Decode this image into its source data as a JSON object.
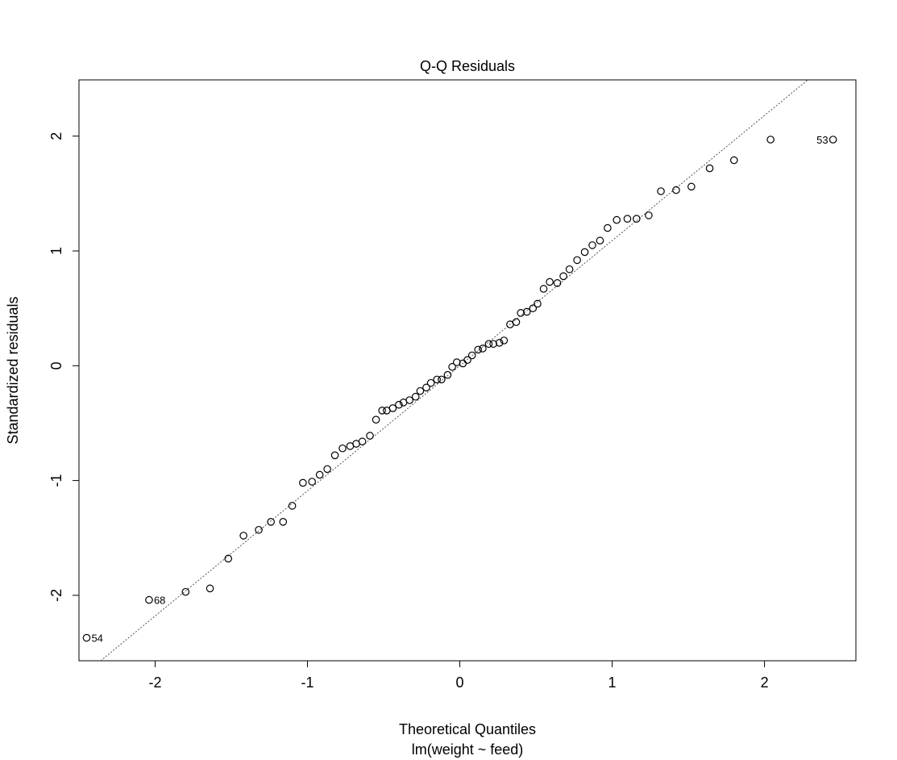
{
  "chart_data": {
    "type": "scatter",
    "title": "Q-Q Residuals",
    "xlabel": "Theoretical Quantiles",
    "xlabel_sub": "lm(weight ~ feed)",
    "ylabel": "Standardized residuals",
    "xlim": [
      -2.5,
      2.6
    ],
    "ylim": [
      -2.57,
      2.49
    ],
    "x_ticks": [
      -2,
      -1,
      0,
      1,
      2
    ],
    "x_tick_labels": [
      "-2",
      "-1",
      "0",
      "1",
      "2"
    ],
    "y_ticks": [
      -2,
      -1,
      0,
      1,
      2
    ],
    "y_tick_labels": [
      "-2",
      "-1",
      "0",
      "1",
      "2"
    ],
    "grid": false,
    "reference_line": {
      "style": "dotted",
      "slope": 1.09,
      "intercept": 0.0
    },
    "points": [
      {
        "x": -2.45,
        "y": -2.37
      },
      {
        "x": -2.04,
        "y": -2.04
      },
      {
        "x": -1.8,
        "y": -1.97
      },
      {
        "x": -1.64,
        "y": -1.94
      },
      {
        "x": -1.52,
        "y": -1.68
      },
      {
        "x": -1.42,
        "y": -1.48
      },
      {
        "x": -1.32,
        "y": -1.43
      },
      {
        "x": -1.24,
        "y": -1.36
      },
      {
        "x": -1.16,
        "y": -1.36
      },
      {
        "x": -1.1,
        "y": -1.22
      },
      {
        "x": -1.03,
        "y": -1.02
      },
      {
        "x": -0.97,
        "y": -1.01
      },
      {
        "x": -0.92,
        "y": -0.95
      },
      {
        "x": -0.87,
        "y": -0.9
      },
      {
        "x": -0.82,
        "y": -0.78
      },
      {
        "x": -0.77,
        "y": -0.72
      },
      {
        "x": -0.72,
        "y": -0.7
      },
      {
        "x": -0.68,
        "y": -0.68
      },
      {
        "x": -0.64,
        "y": -0.66
      },
      {
        "x": -0.59,
        "y": -0.61
      },
      {
        "x": -0.55,
        "y": -0.47
      },
      {
        "x": -0.51,
        "y": -0.39
      },
      {
        "x": -0.48,
        "y": -0.39
      },
      {
        "x": -0.44,
        "y": -0.37
      },
      {
        "x": -0.4,
        "y": -0.34
      },
      {
        "x": -0.37,
        "y": -0.32
      },
      {
        "x": -0.33,
        "y": -0.3
      },
      {
        "x": -0.29,
        "y": -0.27
      },
      {
        "x": -0.26,
        "y": -0.22
      },
      {
        "x": -0.22,
        "y": -0.19
      },
      {
        "x": -0.19,
        "y": -0.15
      },
      {
        "x": -0.15,
        "y": -0.12
      },
      {
        "x": -0.12,
        "y": -0.12
      },
      {
        "x": -0.08,
        "y": -0.08
      },
      {
        "x": -0.05,
        "y": -0.01
      },
      {
        "x": -0.02,
        "y": 0.03
      },
      {
        "x": 0.02,
        "y": 0.02
      },
      {
        "x": 0.05,
        "y": 0.05
      },
      {
        "x": 0.08,
        "y": 0.09
      },
      {
        "x": 0.12,
        "y": 0.14
      },
      {
        "x": 0.15,
        "y": 0.15
      },
      {
        "x": 0.19,
        "y": 0.19
      },
      {
        "x": 0.22,
        "y": 0.19
      },
      {
        "x": 0.26,
        "y": 0.2
      },
      {
        "x": 0.29,
        "y": 0.22
      },
      {
        "x": 0.33,
        "y": 0.36
      },
      {
        "x": 0.37,
        "y": 0.38
      },
      {
        "x": 0.4,
        "y": 0.46
      },
      {
        "x": 0.44,
        "y": 0.47
      },
      {
        "x": 0.48,
        "y": 0.5
      },
      {
        "x": 0.51,
        "y": 0.54
      },
      {
        "x": 0.55,
        "y": 0.67
      },
      {
        "x": 0.59,
        "y": 0.73
      },
      {
        "x": 0.64,
        "y": 0.72
      },
      {
        "x": 0.68,
        "y": 0.78
      },
      {
        "x": 0.72,
        "y": 0.84
      },
      {
        "x": 0.77,
        "y": 0.92
      },
      {
        "x": 0.82,
        "y": 0.99
      },
      {
        "x": 0.87,
        "y": 1.05
      },
      {
        "x": 0.92,
        "y": 1.09
      },
      {
        "x": 0.97,
        "y": 1.2
      },
      {
        "x": 1.03,
        "y": 1.27
      },
      {
        "x": 1.1,
        "y": 1.28
      },
      {
        "x": 1.16,
        "y": 1.28
      },
      {
        "x": 1.24,
        "y": 1.31
      },
      {
        "x": 1.32,
        "y": 1.52
      },
      {
        "x": 1.42,
        "y": 1.53
      },
      {
        "x": 1.52,
        "y": 1.56
      },
      {
        "x": 1.64,
        "y": 1.72
      },
      {
        "x": 1.8,
        "y": 1.79
      },
      {
        "x": 2.04,
        "y": 1.97
      },
      {
        "x": 2.45,
        "y": 1.97
      }
    ],
    "labeled_points": [
      {
        "label": "54",
        "x": -2.45,
        "y": -2.37,
        "side": "right"
      },
      {
        "label": "68",
        "x": -2.04,
        "y": -2.04,
        "side": "right"
      },
      {
        "label": "53",
        "x": 2.45,
        "y": 1.97,
        "side": "left"
      }
    ]
  }
}
